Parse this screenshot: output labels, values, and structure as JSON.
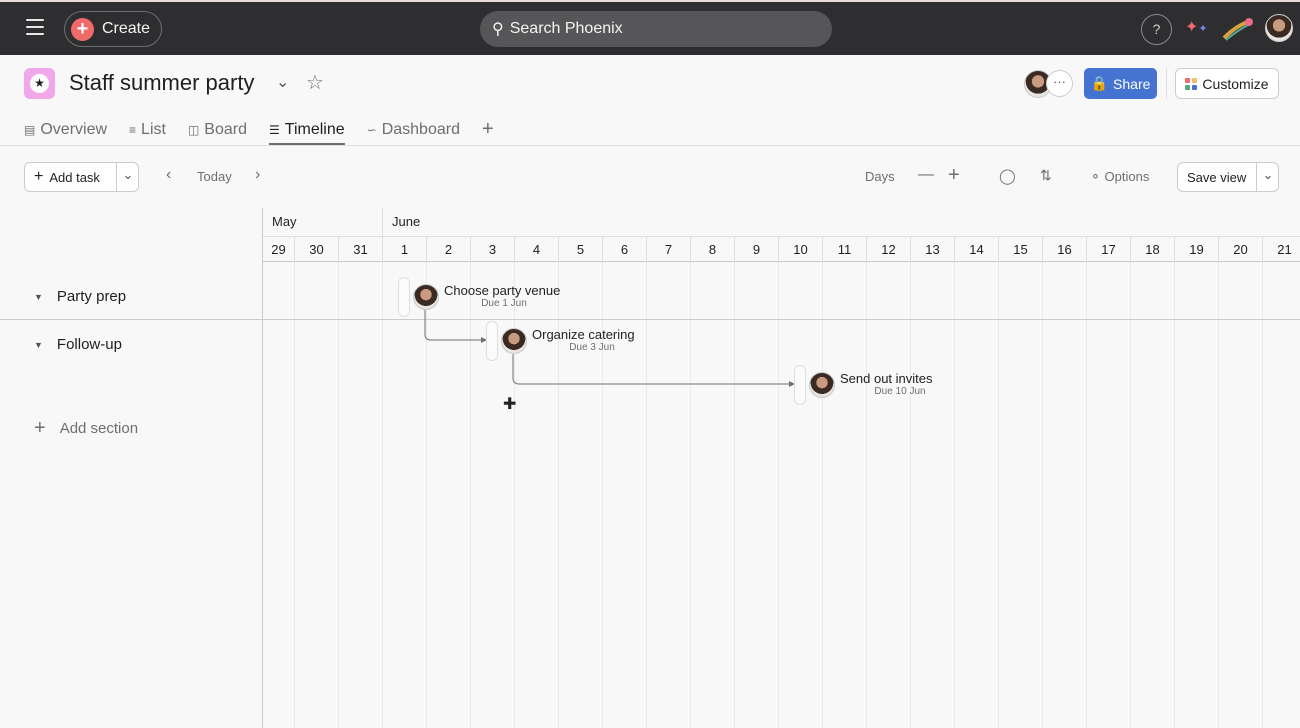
{
  "topbar": {
    "create_label": "Create",
    "search_placeholder": "Search Phoenix",
    "help": "?"
  },
  "project": {
    "title": "Staff summer party",
    "share_label": "Share",
    "customize_label": "Customize",
    "more": "···"
  },
  "tabs": [
    {
      "label": "Overview",
      "icon": "clipboard-icon"
    },
    {
      "label": "List",
      "icon": "list-icon"
    },
    {
      "label": "Board",
      "icon": "board-icon"
    },
    {
      "label": "Timeline",
      "icon": "timeline-icon",
      "active": true
    },
    {
      "label": "Dashboard",
      "icon": "dashboard-icon"
    }
  ],
  "toolbar": {
    "add_task": "Add task",
    "today": "Today",
    "zoom": "Days",
    "options": "Options",
    "save_view": "Save view"
  },
  "timeline": {
    "months": [
      {
        "label": "May"
      },
      {
        "label": "June"
      }
    ],
    "days": [
      "29",
      "30",
      "31",
      "1",
      "2",
      "3",
      "4",
      "5",
      "6",
      "7",
      "8",
      "9",
      "10",
      "11",
      "12",
      "13",
      "14",
      "15",
      "16",
      "17",
      "18",
      "19",
      "20",
      "21"
    ],
    "sections": [
      {
        "name": "Party prep"
      },
      {
        "name": "Follow-up"
      }
    ],
    "add_section": "Add section",
    "tasks": [
      {
        "name": "Choose party venue",
        "due": "Due 1 Jun",
        "day": "1"
      },
      {
        "name": "Organize catering",
        "due": "Due 3 Jun",
        "day": "3"
      },
      {
        "name": "Send out invites",
        "due": "Due 10 Jun",
        "day": "10"
      }
    ]
  },
  "colors": {
    "topbar": "#2e2e30",
    "share": "#4573d2",
    "create": "#f06a6a",
    "project_icon": "#f1a8e8"
  }
}
